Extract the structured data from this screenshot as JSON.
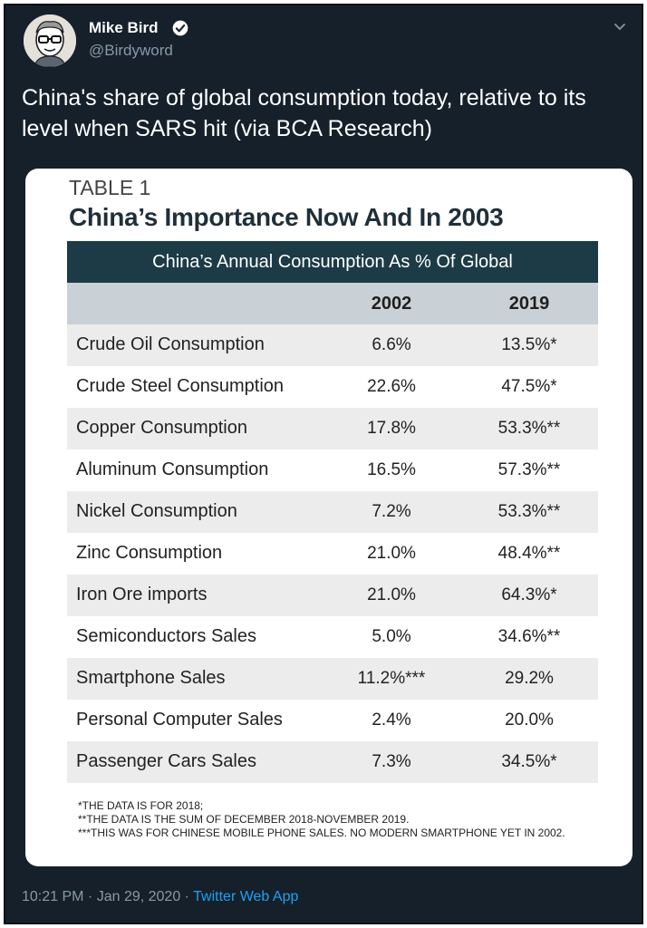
{
  "tweet": {
    "author_name": "Mike Bird",
    "handle": "@Birdyword",
    "text": "China's share of global consumption today, relative to its level when SARS hit (via BCA Research)",
    "timestamp": "10:21 PM · Jan 29, 2020 · ",
    "source_app": "Twitter Web App",
    "icons": [
      "verified-badge-icon",
      "chevron-down-icon"
    ]
  },
  "table": {
    "label": "TABLE 1",
    "title": "China’s Importance Now And In 2003",
    "banner": "China’s Annual Consumption As % Of Global",
    "col_2002": "2002",
    "col_2019": "2019",
    "rows": [
      {
        "label": "Crude Oil Consumption",
        "v2002": "6.6%",
        "v2019": "13.5%*"
      },
      {
        "label": "Crude Steel Consumption",
        "v2002": "22.6%",
        "v2019": "47.5%*"
      },
      {
        "label": "Copper Consumption",
        "v2002": "17.8%",
        "v2019": "53.3%**"
      },
      {
        "label": "Aluminum Consumption",
        "v2002": "16.5%",
        "v2019": "57.3%**"
      },
      {
        "label": "Nickel Consumption",
        "v2002": "7.2%",
        "v2019": "53.3%**"
      },
      {
        "label": "Zinc Consumption",
        "v2002": "21.0%",
        "v2019": "48.4%**"
      },
      {
        "label": "Iron Ore imports",
        "v2002": "21.0%",
        "v2019": "64.3%*"
      },
      {
        "label": "Semiconductors Sales",
        "v2002": "5.0%",
        "v2019": "34.6%**"
      },
      {
        "label": "Smartphone Sales",
        "v2002": "11.2%***",
        "v2019": "29.2%"
      },
      {
        "label": "Personal Computer Sales",
        "v2002": "2.4%",
        "v2019": "20.0%"
      },
      {
        "label": "Passenger Cars Sales",
        "v2002": "7.3%",
        "v2019": "34.5%*"
      }
    ],
    "footnotes": [
      "*THE DATA IS FOR 2018;",
      "**THE DATA IS THE SUM OF DECEMBER 2018-NOVEMBER 2019.",
      "***THIS WAS FOR CHINESE MOBILE PHONE SALES. NO MODERN SMARTPHONE YET IN 2002."
    ]
  },
  "colors": {
    "background": "#15202b",
    "banner": "#1c3b46",
    "header_row": "#c9d0d6",
    "row_shade": "#ececec",
    "link": "#1da1f2"
  }
}
